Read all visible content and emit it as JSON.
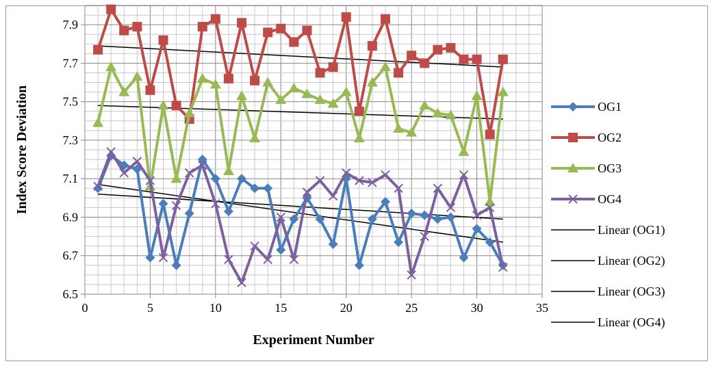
{
  "chart_data": {
    "type": "line",
    "title": "",
    "xlabel": "Experiment Number",
    "ylabel": "Index Score Deviation",
    "xlim": [
      0,
      35
    ],
    "ylim": [
      6.5,
      8.0
    ],
    "xticks": [
      0,
      5,
      10,
      15,
      20,
      25,
      30,
      35
    ],
    "yticks": [
      6.5,
      6.7,
      6.9,
      7.1,
      7.3,
      7.5,
      7.7,
      7.9
    ],
    "x_minor_step": 1,
    "y_minor_step": 0.05,
    "grid": true,
    "legend_position": "right",
    "x": [
      1,
      2,
      3,
      4,
      5,
      6,
      7,
      8,
      9,
      10,
      11,
      12,
      13,
      14,
      15,
      16,
      17,
      18,
      19,
      20,
      21,
      22,
      23,
      24,
      25,
      26,
      27,
      28,
      29,
      30,
      31,
      32
    ],
    "series": [
      {
        "name": "OG1",
        "color": "#4a7ebb",
        "marker": "diamond",
        "values": [
          7.05,
          7.22,
          7.17,
          7.15,
          6.69,
          6.97,
          6.65,
          6.92,
          7.2,
          7.1,
          6.93,
          7.1,
          7.05,
          7.05,
          6.73,
          6.89,
          7.0,
          6.89,
          6.76,
          7.1,
          6.65,
          6.89,
          6.98,
          6.77,
          6.92,
          6.91,
          6.89,
          6.9,
          6.69,
          6.84,
          6.77,
          6.65
        ]
      },
      {
        "name": "OG2",
        "color": "#be4b48",
        "marker": "square",
        "values": [
          7.77,
          7.98,
          7.87,
          7.89,
          7.56,
          7.82,
          7.48,
          7.41,
          7.89,
          7.93,
          7.62,
          7.91,
          7.61,
          7.86,
          7.88,
          7.81,
          7.87,
          7.65,
          7.68,
          7.94,
          7.45,
          7.79,
          7.93,
          7.65,
          7.74,
          7.7,
          7.77,
          7.78,
          7.72,
          7.72,
          7.33,
          7.72
        ]
      },
      {
        "name": "OG3",
        "color": "#98b954",
        "marker": "triangle",
        "values": [
          7.39,
          7.68,
          7.55,
          7.63,
          7.06,
          7.48,
          7.1,
          7.44,
          7.62,
          7.59,
          7.14,
          7.53,
          7.31,
          7.6,
          7.51,
          7.57,
          7.54,
          7.51,
          7.49,
          7.55,
          7.31,
          7.6,
          7.68,
          7.36,
          7.34,
          7.48,
          7.44,
          7.43,
          7.24,
          7.53,
          6.98,
          7.55
        ]
      },
      {
        "name": "OG4",
        "color": "#7d60a0",
        "marker": "x",
        "values": [
          7.06,
          7.24,
          7.13,
          7.19,
          7.09,
          6.69,
          6.96,
          7.13,
          7.17,
          6.97,
          6.68,
          6.56,
          6.75,
          6.68,
          6.9,
          6.68,
          7.03,
          7.09,
          7.01,
          7.13,
          7.09,
          7.08,
          7.12,
          7.05,
          6.6,
          6.8,
          7.05,
          6.95,
          7.12,
          6.91,
          6.95,
          6.64
        ]
      },
      {
        "name": "Linear (OG1)",
        "color": "#000000",
        "trend_of": "OG1",
        "start": [
          1,
          7.07
        ],
        "end": [
          32,
          6.77
        ]
      },
      {
        "name": "Linear (OG2)",
        "color": "#000000",
        "trend_of": "OG2",
        "start": [
          1,
          7.79
        ],
        "end": [
          32,
          7.68
        ]
      },
      {
        "name": "Linear (OG3)",
        "color": "#000000",
        "trend_of": "OG3",
        "start": [
          1,
          7.48
        ],
        "end": [
          32,
          7.41
        ]
      },
      {
        "name": "Linear (OG4)",
        "color": "#000000",
        "trend_of": "OG4",
        "start": [
          1,
          7.02
        ],
        "end": [
          32,
          6.89
        ]
      }
    ]
  }
}
